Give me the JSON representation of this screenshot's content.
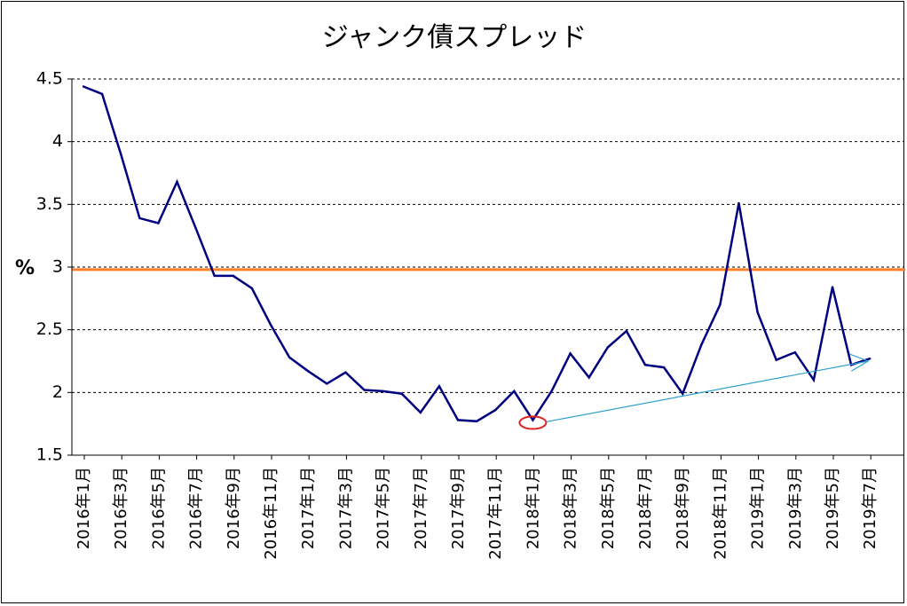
{
  "chart_data": {
    "type": "line",
    "title": "ジャンク債スプレッド",
    "ylabel": "%",
    "xlabel": "",
    "ylim": [
      1.5,
      4.5
    ],
    "yticks": [
      "1.5",
      "2",
      "2.5",
      "3",
      "3.5",
      "4",
      "4.5"
    ],
    "ytick_values": [
      1.5,
      2,
      2.5,
      3,
      3.5,
      4,
      4.5
    ],
    "grid": "horizontal dashed",
    "reference_line": {
      "value": 2.98,
      "color": "#ff7f27"
    },
    "categories": [
      "2016年1月",
      "2016年2月",
      "2016年3月",
      "2016年4月",
      "2016年5月",
      "2016年6月",
      "2016年7月",
      "2016年8月",
      "2016年9月",
      "2016年10月",
      "2016年11月",
      "2016年12月",
      "2017年1月",
      "2017年2月",
      "2017年3月",
      "2017年4月",
      "2017年5月",
      "2017年6月",
      "2017年7月",
      "2017年8月",
      "2017年9月",
      "2017年10月",
      "2017年11月",
      "2017年12月",
      "2018年1月",
      "2018年2月",
      "2018年3月",
      "2018年4月",
      "2018年5月",
      "2018年6月",
      "2018年7月",
      "2018年8月",
      "2018年9月",
      "2018年10月",
      "2018年11月",
      "2018年12月",
      "2019年1月",
      "2019年2月",
      "2019年3月",
      "2019年4月",
      "2019年5月",
      "2019年6月",
      "2019年7月"
    ],
    "xtick_labels": [
      "2016年1月",
      "2016年3月",
      "2016年5月",
      "2016年7月",
      "2016年9月",
      "2016年11月",
      "2017年1月",
      "2017年3月",
      "2017年5月",
      "2017年7月",
      "2017年9月",
      "2017年11月",
      "2018年1月",
      "2018年3月",
      "2018年5月",
      "2018年7月",
      "2018年9月",
      "2018年11月",
      "2019年1月",
      "2019年3月",
      "2019年5月",
      "2019年7月"
    ],
    "series": [
      {
        "color": "#000080",
        "values": [
          4.44,
          4.38,
          3.9,
          3.39,
          3.35,
          3.68,
          3.31,
          2.93,
          2.93,
          2.83,
          2.54,
          2.28,
          2.17,
          2.07,
          2.16,
          2.02,
          2.01,
          1.99,
          1.84,
          2.05,
          1.78,
          1.77,
          1.86,
          2.01,
          1.78,
          2.01,
          2.31,
          2.12,
          2.36,
          2.49,
          2.22,
          2.2,
          1.99,
          2.38,
          2.7,
          3.51,
          2.64,
          2.26,
          2.32,
          2.1,
          2.84,
          2.22,
          2.27
        ]
      }
    ],
    "annotations": {
      "highlight_point": {
        "category": "2018年1月",
        "value": 1.78,
        "shape": "ellipse",
        "color": "#e02020"
      },
      "trend_arrow": {
        "from": {
          "category": "2018年1月",
          "value": 1.78
        },
        "to": {
          "category": "2019年7月",
          "value": 2.25
        },
        "color": "#30a0d0"
      }
    }
  }
}
